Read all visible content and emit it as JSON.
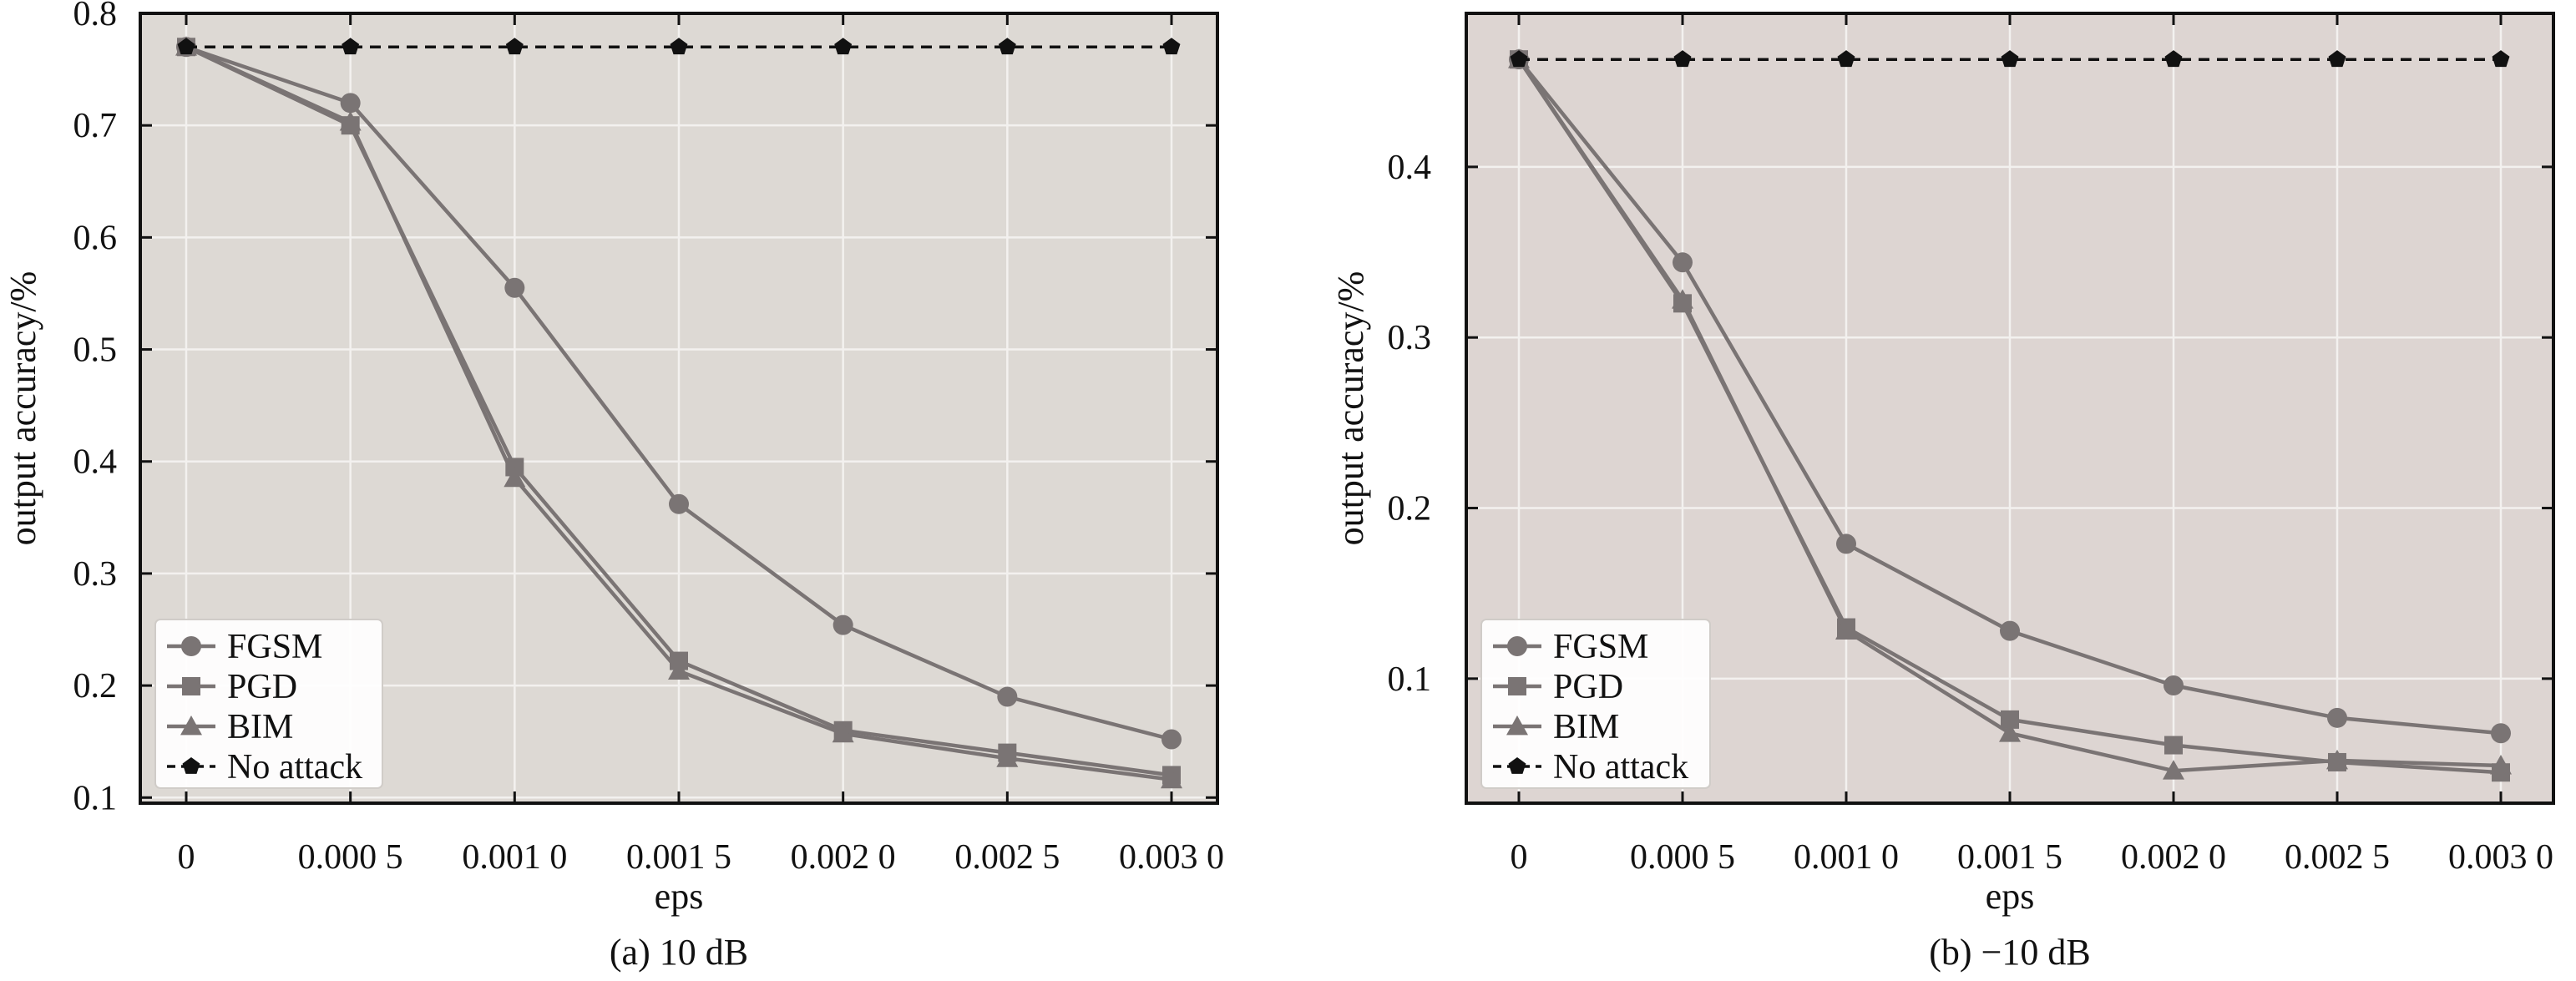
{
  "chart_data": [
    {
      "type": "line",
      "caption": "(a) 10 dB",
      "xlabel": "eps",
      "ylabel": "output accuracy/%",
      "x": [
        0,
        0.0005,
        0.001,
        0.0015,
        0.002,
        0.0025,
        0.003
      ],
      "xtick_labels": [
        "0",
        "0.000 5",
        "0.001 0",
        "0.001 5",
        "0.002 0",
        "0.002 5",
        "0.003 0"
      ],
      "yticks": [
        0.1,
        0.2,
        0.3,
        0.4,
        0.5,
        0.6,
        0.7,
        0.8
      ],
      "ytick_labels": [
        "0.1",
        "0.2",
        "0.3",
        "0.4",
        "0.5",
        "0.6",
        "0.7",
        "0.8"
      ],
      "ylim": [
        0.095,
        0.8
      ],
      "grid": true,
      "legend_position": "lower-left",
      "series": [
        {
          "name": "FGSM",
          "marker": "circle",
          "color": "#7a7474",
          "dashed": false,
          "values": [
            0.77,
            0.72,
            0.555,
            0.362,
            0.254,
            0.19,
            0.152
          ]
        },
        {
          "name": "PGD",
          "marker": "square",
          "color": "#7a7474",
          "dashed": false,
          "values": [
            0.77,
            0.7,
            0.395,
            0.222,
            0.16,
            0.14,
            0.12
          ]
        },
        {
          "name": "BIM",
          "marker": "triangle",
          "color": "#7a7474",
          "dashed": false,
          "values": [
            0.77,
            0.703,
            0.385,
            0.213,
            0.157,
            0.135,
            0.116
          ]
        },
        {
          "name": "No attack",
          "marker": "pentagon",
          "color": "#111111",
          "dashed": true,
          "values": [
            0.77,
            0.77,
            0.77,
            0.77,
            0.77,
            0.77,
            0.77
          ]
        }
      ]
    },
    {
      "type": "line",
      "caption": "(b) −10 dB",
      "xlabel": "eps",
      "ylabel": "output accuracy/%",
      "x": [
        0,
        0.0005,
        0.001,
        0.0015,
        0.002,
        0.0025,
        0.003
      ],
      "xtick_labels": [
        "0",
        "0.000 5",
        "0.001 0",
        "0.001 5",
        "0.002 0",
        "0.002 5",
        "0.003 0"
      ],
      "yticks": [
        0.1,
        0.2,
        0.3,
        0.4
      ],
      "ytick_labels": [
        "0.1",
        "0.2",
        "0.3",
        "0.4"
      ],
      "ylim": [
        0.027,
        0.49
      ],
      "grid": true,
      "legend_position": "lower-left",
      "series": [
        {
          "name": "FGSM",
          "marker": "circle",
          "color": "#7a7474",
          "dashed": false,
          "values": [
            0.463,
            0.344,
            0.179,
            0.128,
            0.096,
            0.077,
            0.068
          ]
        },
        {
          "name": "PGD",
          "marker": "square",
          "color": "#7a7474",
          "dashed": false,
          "values": [
            0.463,
            0.32,
            0.13,
            0.076,
            0.061,
            0.051,
            0.045
          ]
        },
        {
          "name": "BIM",
          "marker": "triangle",
          "color": "#7a7474",
          "dashed": false,
          "values": [
            0.463,
            0.322,
            0.128,
            0.068,
            0.046,
            0.052,
            0.049
          ]
        },
        {
          "name": "No attack",
          "marker": "pentagon",
          "color": "#111111",
          "dashed": true,
          "values": [
            0.463,
            0.463,
            0.463,
            0.463,
            0.463,
            0.463,
            0.463
          ]
        }
      ]
    }
  ],
  "colors": {
    "panel_a_background": "#ddd9d4",
    "panel_b_background": "#ddd5d2",
    "grid": "#f3f1ef"
  }
}
